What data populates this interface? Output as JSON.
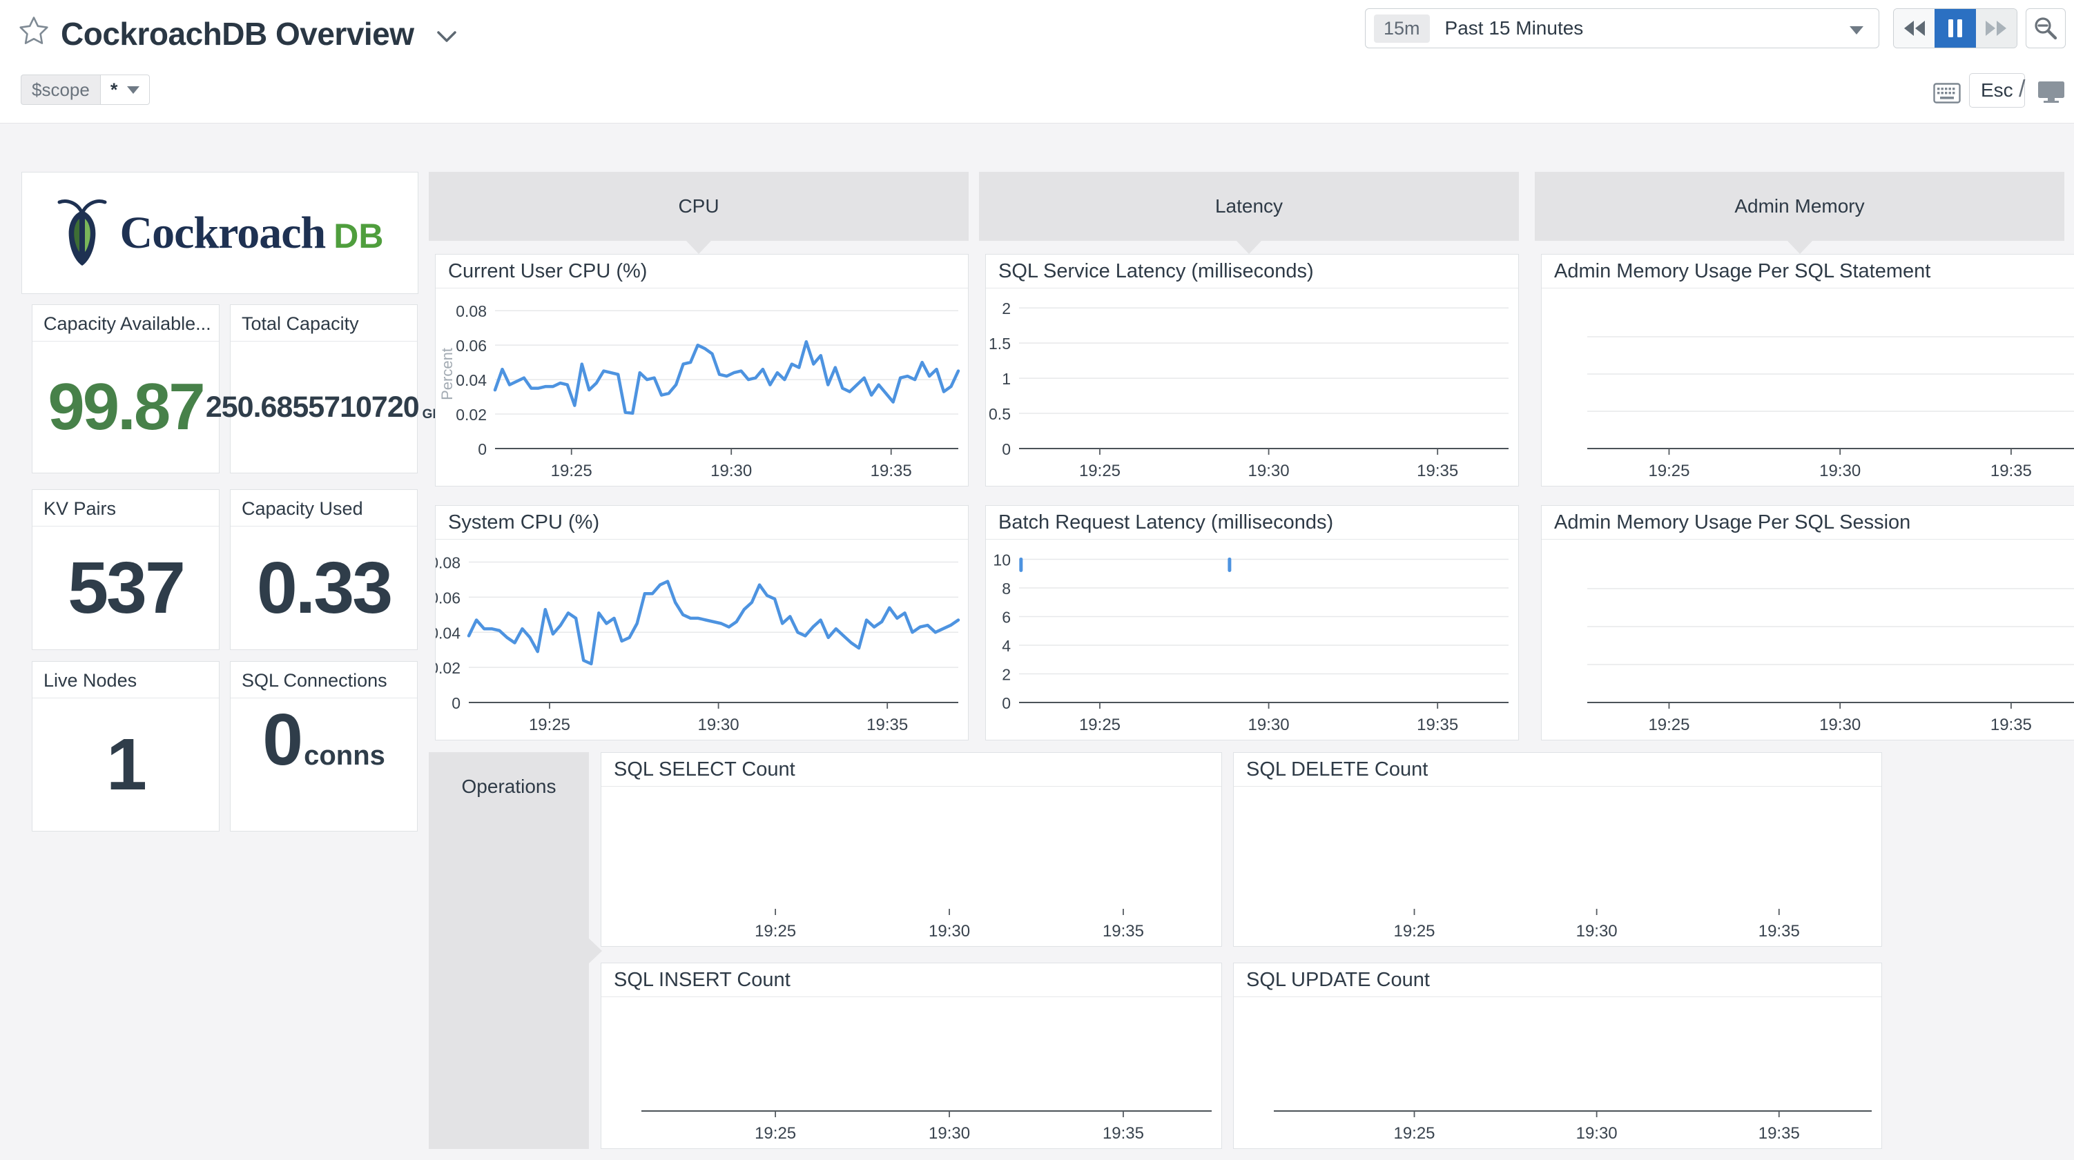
{
  "header": {
    "title": "CockroachDB Overview",
    "time_badge": "15m",
    "time_label": "Past 15 Minutes",
    "esc": "Esc",
    "slash": "/",
    "scope_name": "$scope",
    "scope_value": "*"
  },
  "logo": {
    "brand": "Cockroach",
    "suffix": "DB"
  },
  "groups": {
    "cpu": "CPU",
    "latency": "Latency",
    "admin_memory": "Admin Memory",
    "operations": "Operations"
  },
  "stats": {
    "capacity_available": {
      "title": "Capacity Available...",
      "value": "99.87"
    },
    "total_capacity": {
      "title": "Total Capacity",
      "value": "250.6855710720",
      "unit": "GB"
    },
    "kv_pairs": {
      "title": "KV Pairs",
      "value": "537"
    },
    "capacity_used": {
      "title": "Capacity Used",
      "value": "0.33"
    },
    "live_nodes": {
      "title": "Live Nodes",
      "value": "1"
    },
    "sql_connections": {
      "title": "SQL Connections",
      "value": "0",
      "unit": "conns"
    }
  },
  "colors": {
    "line_blue": "#4d93e0",
    "value_green": "#478149",
    "value_dark": "#2f3d4a",
    "active_pause_blue": "#2b70c2",
    "band_gray": "#e3e3e5"
  },
  "chart_data": [
    {
      "id": "current_user_cpu",
      "type": "line",
      "title": "Current User CPU (%)",
      "ylabel": "Percent",
      "yticks": [
        0,
        0.02,
        0.04,
        0.06,
        0.08
      ],
      "ylim": [
        0,
        0.0865
      ],
      "xticks": [
        "19:25",
        "19:30",
        "19:35"
      ],
      "grid": true,
      "legend": "none",
      "values": [
        0.034,
        0.046,
        0.037,
        0.039,
        0.041,
        0.035,
        0.035,
        0.036,
        0.036,
        0.038,
        0.037,
        0.025,
        0.049,
        0.034,
        0.038,
        0.045,
        0.044,
        0.043,
        0.021,
        0.0205,
        0.044,
        0.04,
        0.041,
        0.031,
        0.032,
        0.037,
        0.049,
        0.05,
        0.06,
        0.058,
        0.055,
        0.043,
        0.042,
        0.044,
        0.045,
        0.04,
        0.041,
        0.046,
        0.037,
        0.044,
        0.04,
        0.049,
        0.047,
        0.062,
        0.049,
        0.054,
        0.037,
        0.047,
        0.035,
        0.033,
        0.037,
        0.041,
        0.031,
        0.037,
        0.032,
        0.027,
        0.041,
        0.042,
        0.04,
        0.05,
        0.042,
        0.046,
        0.033,
        0.036,
        0.045
      ]
    },
    {
      "id": "system_cpu",
      "type": "line",
      "title": "System CPU (%)",
      "yticks": [
        0,
        0.02,
        0.04,
        0.06,
        0.08
      ],
      "ylim": [
        0,
        0.0865
      ],
      "xticks": [
        "19:25",
        "19:30",
        "19:35"
      ],
      "grid": true,
      "legend": "none",
      "values": [
        0.038,
        0.047,
        0.042,
        0.042,
        0.041,
        0.037,
        0.034,
        0.042,
        0.037,
        0.029,
        0.053,
        0.039,
        0.044,
        0.051,
        0.048,
        0.024,
        0.022,
        0.051,
        0.045,
        0.048,
        0.035,
        0.037,
        0.045,
        0.062,
        0.062,
        0.067,
        0.069,
        0.057,
        0.05,
        0.048,
        0.048,
        0.047,
        0.046,
        0.045,
        0.043,
        0.046,
        0.053,
        0.057,
        0.067,
        0.061,
        0.059,
        0.045,
        0.049,
        0.04,
        0.038,
        0.043,
        0.047,
        0.037,
        0.042,
        0.038,
        0.034,
        0.031,
        0.047,
        0.043,
        0.046,
        0.054,
        0.048,
        0.051,
        0.04,
        0.043,
        0.044,
        0.04,
        0.042,
        0.044,
        0.047
      ]
    },
    {
      "id": "sql_service_latency",
      "type": "line",
      "title": "SQL Service Latency (milliseconds)",
      "yticks": [
        0,
        0.5,
        1,
        1.5,
        2
      ],
      "ylim": [
        0,
        2.12
      ],
      "xticks": [
        "19:25",
        "19:30",
        "19:35"
      ],
      "grid": true,
      "values": []
    },
    {
      "id": "batch_request_latency",
      "type": "line",
      "title": "Batch Request Latency (milliseconds)",
      "yticks": [
        0,
        2,
        4,
        6,
        8,
        10
      ],
      "ylim": [
        0,
        10.6
      ],
      "xticks": [
        "19:25",
        "19:30",
        "19:35"
      ],
      "grid": true,
      "values": [],
      "spikes": [
        {
          "x": 0.004,
          "value": 10
        },
        {
          "x": 0.43,
          "value": 10
        }
      ]
    },
    {
      "id": "admin_mem_per_statement",
      "type": "line",
      "title": "Admin Memory Usage Per SQL Statement",
      "yticks": [],
      "grid_count": 3,
      "xticks": [
        "19:25",
        "19:30",
        "19:35"
      ],
      "values": []
    },
    {
      "id": "admin_mem_per_session",
      "type": "line",
      "title": "Admin Memory Usage Per SQL Session",
      "yticks": [],
      "grid_count": 3,
      "xticks": [
        "19:25",
        "19:30",
        "19:35"
      ],
      "values": []
    },
    {
      "id": "sql_select_count",
      "type": "line",
      "title": "SQL SELECT Count",
      "xticks": [
        "19:25",
        "19:30",
        "19:35"
      ],
      "values": [],
      "show_axis": false
    },
    {
      "id": "sql_delete_count",
      "type": "line",
      "title": "SQL DELETE Count",
      "xticks": [
        "19:25",
        "19:30",
        "19:35"
      ],
      "values": [],
      "show_axis": false
    },
    {
      "id": "sql_insert_count",
      "type": "line",
      "title": "SQL INSERT Count",
      "xticks": [
        "19:25",
        "19:30",
        "19:35"
      ],
      "values": [],
      "show_axis": true
    },
    {
      "id": "sql_update_count",
      "type": "line",
      "title": "SQL UPDATE Count",
      "xticks": [
        "19:25",
        "19:30",
        "19:35"
      ],
      "values": [],
      "show_axis": true
    }
  ]
}
